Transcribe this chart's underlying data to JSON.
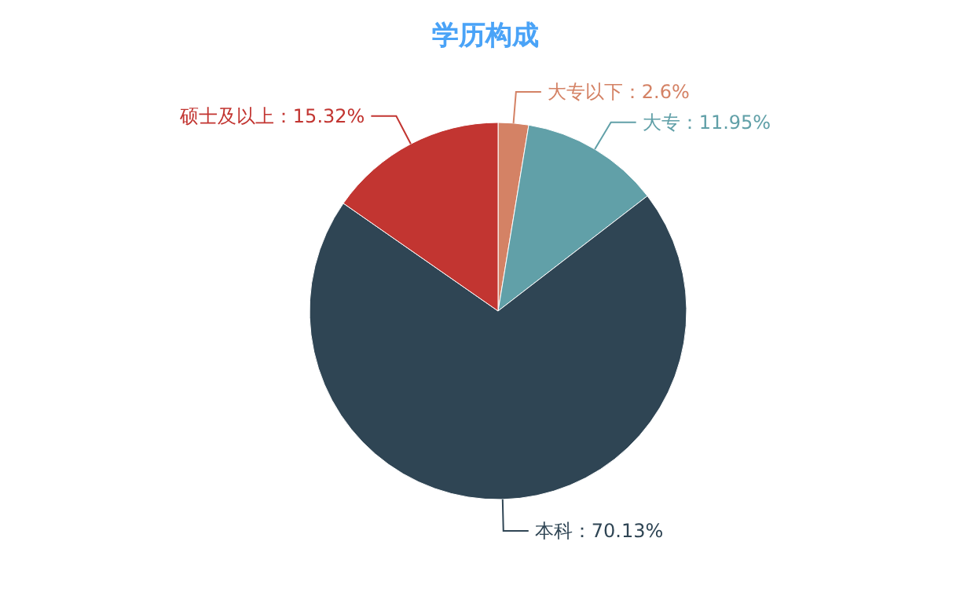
{
  "chart_data": {
    "type": "pie",
    "title": "学历构成",
    "categories": [
      "大专以下",
      "大专",
      "本科",
      "硕士及以上"
    ],
    "values": [
      2.6,
      11.95,
      70.13,
      15.32
    ],
    "value_labels": [
      "2.6%",
      "11.95%",
      "70.13%",
      "15.32%"
    ],
    "colors": [
      "#d48265",
      "#61a0a8",
      "#2f4554",
      "#c23531"
    ],
    "legend": false
  }
}
